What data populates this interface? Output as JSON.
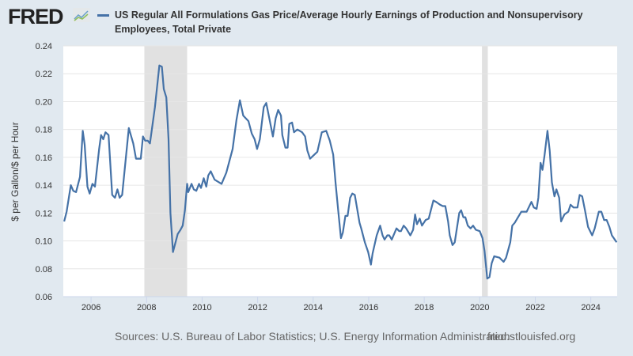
{
  "header": {
    "logo": "FRED",
    "title": "US Regular All Formulations Gas Price/Average Hourly Earnings of Production and Nonsupervisory Employees, Total Private"
  },
  "footer": {
    "sources": "Sources: U.S. Bureau of Labor Statistics; U.S. Energy Information Administration",
    "url": "fred.stlouisfed.org"
  },
  "colors": {
    "line": "#4572a7",
    "recession": "#e1e1e1",
    "plot_bg": "#ffffff",
    "grid": "#e6e6e6"
  },
  "chart_data": {
    "type": "line",
    "title": "US Regular All Formulations Gas Price/Average Hourly Earnings of Production and Nonsupervisory Employees, Total Private",
    "xlabel": "",
    "ylabel": "$ per Gallon/$ per Hour",
    "xlim": [
      2005.0,
      2024.95
    ],
    "ylim": [
      0.06,
      0.24
    ],
    "yticks": [
      "0.06",
      "0.08",
      "0.10",
      "0.12",
      "0.14",
      "0.16",
      "0.18",
      "0.20",
      "0.22",
      "0.24"
    ],
    "xticks": [
      "2006",
      "2008",
      "2010",
      "2012",
      "2014",
      "2016",
      "2018",
      "2020",
      "2022",
      "2024"
    ],
    "grid": true,
    "legend": "top",
    "recessions": [
      [
        2007.92,
        2009.46
      ],
      [
        2020.08,
        2020.29
      ]
    ],
    "series": [
      {
        "name": "US Regular All Formulations Gas Price/Average Hourly Earnings of Production and Nonsupervisory Employees, Total Private",
        "points": [
          [
            2005.03,
            0.114
          ],
          [
            2005.12,
            0.121
          ],
          [
            2005.27,
            0.14
          ],
          [
            2005.36,
            0.136
          ],
          [
            2005.46,
            0.135
          ],
          [
            2005.6,
            0.146
          ],
          [
            2005.7,
            0.179
          ],
          [
            2005.77,
            0.169
          ],
          [
            2005.87,
            0.139
          ],
          [
            2005.95,
            0.134
          ],
          [
            2006.05,
            0.141
          ],
          [
            2006.14,
            0.139
          ],
          [
            2006.29,
            0.166
          ],
          [
            2006.36,
            0.176
          ],
          [
            2006.44,
            0.173
          ],
          [
            2006.52,
            0.178
          ],
          [
            2006.63,
            0.176
          ],
          [
            2006.76,
            0.133
          ],
          [
            2006.86,
            0.131
          ],
          [
            2006.95,
            0.137
          ],
          [
            2007.03,
            0.131
          ],
          [
            2007.12,
            0.133
          ],
          [
            2007.36,
            0.181
          ],
          [
            2007.52,
            0.17
          ],
          [
            2007.62,
            0.159
          ],
          [
            2007.79,
            0.159
          ],
          [
            2007.87,
            0.175
          ],
          [
            2007.95,
            0.172
          ],
          [
            2008.04,
            0.172
          ],
          [
            2008.12,
            0.17
          ],
          [
            2008.3,
            0.196
          ],
          [
            2008.46,
            0.226
          ],
          [
            2008.55,
            0.225
          ],
          [
            2008.62,
            0.209
          ],
          [
            2008.71,
            0.203
          ],
          [
            2008.79,
            0.173
          ],
          [
            2008.86,
            0.12
          ],
          [
            2008.95,
            0.092
          ],
          [
            2009.12,
            0.105
          ],
          [
            2009.22,
            0.108
          ],
          [
            2009.3,
            0.111
          ],
          [
            2009.38,
            0.122
          ],
          [
            2009.46,
            0.141
          ],
          [
            2009.5,
            0.135
          ],
          [
            2009.62,
            0.141
          ],
          [
            2009.7,
            0.137
          ],
          [
            2009.79,
            0.136
          ],
          [
            2009.89,
            0.141
          ],
          [
            2009.96,
            0.138
          ],
          [
            2010.06,
            0.145
          ],
          [
            2010.15,
            0.139
          ],
          [
            2010.22,
            0.147
          ],
          [
            2010.31,
            0.15
          ],
          [
            2010.45,
            0.144
          ],
          [
            2010.7,
            0.141
          ],
          [
            2010.87,
            0.149
          ],
          [
            2011.1,
            0.166
          ],
          [
            2011.24,
            0.187
          ],
          [
            2011.36,
            0.201
          ],
          [
            2011.48,
            0.19
          ],
          [
            2011.67,
            0.186
          ],
          [
            2011.79,
            0.177
          ],
          [
            2011.89,
            0.173
          ],
          [
            2011.98,
            0.166
          ],
          [
            2012.08,
            0.173
          ],
          [
            2012.22,
            0.196
          ],
          [
            2012.31,
            0.199
          ],
          [
            2012.55,
            0.175
          ],
          [
            2012.65,
            0.188
          ],
          [
            2012.74,
            0.194
          ],
          [
            2012.84,
            0.19
          ],
          [
            2012.89,
            0.176
          ],
          [
            2013.0,
            0.167
          ],
          [
            2013.08,
            0.167
          ],
          [
            2013.14,
            0.184
          ],
          [
            2013.24,
            0.185
          ],
          [
            2013.31,
            0.178
          ],
          [
            2013.43,
            0.18
          ],
          [
            2013.6,
            0.178
          ],
          [
            2013.71,
            0.175
          ],
          [
            2013.79,
            0.165
          ],
          [
            2013.89,
            0.159
          ],
          [
            2014.15,
            0.164
          ],
          [
            2014.31,
            0.178
          ],
          [
            2014.47,
            0.179
          ],
          [
            2014.6,
            0.172
          ],
          [
            2014.72,
            0.162
          ],
          [
            2014.81,
            0.141
          ],
          [
            2014.9,
            0.122
          ],
          [
            2015.0,
            0.102
          ],
          [
            2015.07,
            0.106
          ],
          [
            2015.16,
            0.118
          ],
          [
            2015.24,
            0.118
          ],
          [
            2015.33,
            0.131
          ],
          [
            2015.41,
            0.134
          ],
          [
            2015.5,
            0.133
          ],
          [
            2015.67,
            0.113
          ],
          [
            2015.73,
            0.109
          ],
          [
            2015.86,
            0.099
          ],
          [
            2015.98,
            0.092
          ],
          [
            2016.08,
            0.083
          ],
          [
            2016.14,
            0.091
          ],
          [
            2016.29,
            0.104
          ],
          [
            2016.41,
            0.111
          ],
          [
            2016.5,
            0.104
          ],
          [
            2016.57,
            0.101
          ],
          [
            2016.67,
            0.104
          ],
          [
            2016.74,
            0.104
          ],
          [
            2016.83,
            0.101
          ],
          [
            2017.0,
            0.109
          ],
          [
            2017.1,
            0.107
          ],
          [
            2017.16,
            0.107
          ],
          [
            2017.26,
            0.111
          ],
          [
            2017.35,
            0.109
          ],
          [
            2017.5,
            0.104
          ],
          [
            2017.6,
            0.108
          ],
          [
            2017.67,
            0.119
          ],
          [
            2017.74,
            0.112
          ],
          [
            2017.84,
            0.116
          ],
          [
            2017.92,
            0.111
          ],
          [
            2018.05,
            0.115
          ],
          [
            2018.16,
            0.116
          ],
          [
            2018.33,
            0.129
          ],
          [
            2018.43,
            0.128
          ],
          [
            2018.57,
            0.126
          ],
          [
            2018.67,
            0.125
          ],
          [
            2018.76,
            0.125
          ],
          [
            2018.86,
            0.114
          ],
          [
            2018.92,
            0.104
          ],
          [
            2019.02,
            0.097
          ],
          [
            2019.1,
            0.099
          ],
          [
            2019.26,
            0.12
          ],
          [
            2019.33,
            0.122
          ],
          [
            2019.41,
            0.117
          ],
          [
            2019.48,
            0.117
          ],
          [
            2019.57,
            0.111
          ],
          [
            2019.67,
            0.109
          ],
          [
            2019.76,
            0.111
          ],
          [
            2019.86,
            0.108
          ],
          [
            2020.0,
            0.107
          ],
          [
            2020.1,
            0.102
          ],
          [
            2020.17,
            0.093
          ],
          [
            2020.27,
            0.073
          ],
          [
            2020.35,
            0.074
          ],
          [
            2020.43,
            0.084
          ],
          [
            2020.52,
            0.089
          ],
          [
            2020.71,
            0.088
          ],
          [
            2020.86,
            0.085
          ],
          [
            2020.95,
            0.088
          ],
          [
            2021.1,
            0.099
          ],
          [
            2021.17,
            0.111
          ],
          [
            2021.26,
            0.113
          ],
          [
            2021.38,
            0.117
          ],
          [
            2021.5,
            0.121
          ],
          [
            2021.69,
            0.121
          ],
          [
            2021.86,
            0.128
          ],
          [
            2021.95,
            0.124
          ],
          [
            2022.05,
            0.123
          ],
          [
            2022.11,
            0.131
          ],
          [
            2022.19,
            0.156
          ],
          [
            2022.26,
            0.151
          ],
          [
            2022.33,
            0.161
          ],
          [
            2022.44,
            0.179
          ],
          [
            2022.52,
            0.165
          ],
          [
            2022.6,
            0.142
          ],
          [
            2022.69,
            0.132
          ],
          [
            2022.76,
            0.137
          ],
          [
            2022.86,
            0.131
          ],
          [
            2022.93,
            0.114
          ],
          [
            2023.05,
            0.119
          ],
          [
            2023.19,
            0.121
          ],
          [
            2023.27,
            0.126
          ],
          [
            2023.38,
            0.124
          ],
          [
            2023.52,
            0.124
          ],
          [
            2023.6,
            0.133
          ],
          [
            2023.69,
            0.132
          ],
          [
            2023.79,
            0.122
          ],
          [
            2023.9,
            0.11
          ],
          [
            2024.05,
            0.104
          ],
          [
            2024.14,
            0.109
          ],
          [
            2024.29,
            0.121
          ],
          [
            2024.38,
            0.121
          ],
          [
            2024.48,
            0.115
          ],
          [
            2024.57,
            0.115
          ],
          [
            2024.67,
            0.11
          ],
          [
            2024.76,
            0.104
          ],
          [
            2024.93,
            0.099
          ]
        ]
      }
    ]
  }
}
